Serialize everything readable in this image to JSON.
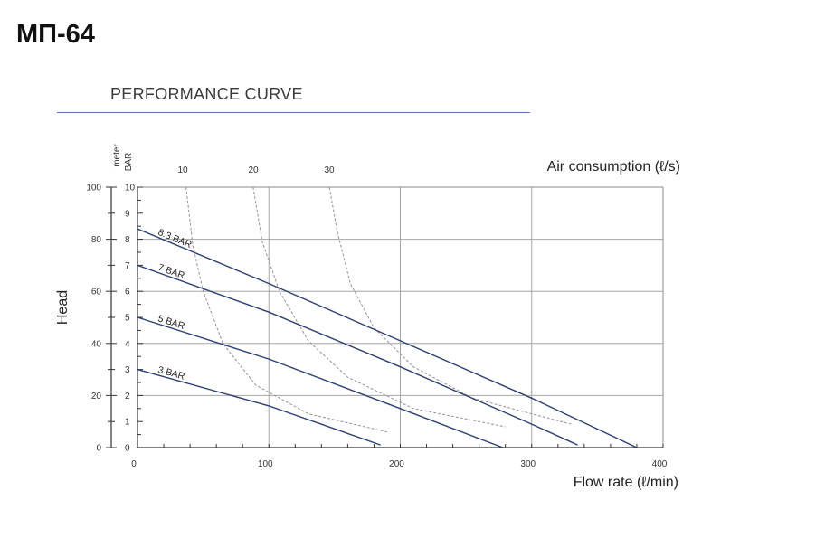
{
  "page": {
    "model_title": "МП-64",
    "curve_heading": "PERFORMANCE CURVE"
  },
  "chart_data": {
    "type": "line",
    "title": "PERFORMANCE CURVE",
    "xlabel": "Flow rate (ℓ/min)",
    "x_ticks": [
      0,
      100,
      200,
      300,
      400
    ],
    "xlim": [
      0,
      400
    ],
    "ylabel_left": "Head",
    "ylabel_left_unit": "meter",
    "y_ticks_left": [
      0,
      20,
      40,
      60,
      80,
      100
    ],
    "ylim_left": [
      0,
      100
    ],
    "ylabel_right_unit": "BAR",
    "y_ticks_bar": [
      0,
      1,
      2,
      3,
      4,
      5,
      6,
      7,
      8,
      9,
      10
    ],
    "ylim_bar": [
      0,
      10
    ],
    "top_axis_label": "Air consumption (ℓ/s)",
    "top_ticks": [
      "10",
      "20",
      "30"
    ],
    "grid": true,
    "colors": {
      "pressure_curve": "#2c3e72",
      "air_curve": "#9a8f95",
      "grid": "#a6a6a6"
    },
    "series": [
      {
        "name": "8.3 BAR",
        "kind": "pressure",
        "x": [
          0,
          100,
          200,
          300,
          380
        ],
        "y": [
          8.4,
          6.3,
          4.1,
          1.9,
          0
        ]
      },
      {
        "name": "7 BAR",
        "kind": "pressure",
        "x": [
          0,
          100,
          200,
          300,
          335
        ],
        "y": [
          7.0,
          5.2,
          3.1,
          0.9,
          0.1
        ]
      },
      {
        "name": "5 BAR",
        "kind": "pressure",
        "x": [
          0,
          100,
          200,
          278
        ],
        "y": [
          5.0,
          3.4,
          1.5,
          0
        ]
      },
      {
        "name": "3 BAR",
        "kind": "pressure",
        "x": [
          0,
          100,
          185
        ],
        "y": [
          3.0,
          1.6,
          0.1
        ]
      },
      {
        "name": "10",
        "kind": "air",
        "x": [
          37,
          42,
          50,
          65,
          90,
          130,
          190
        ],
        "y": [
          10,
          7.8,
          6.0,
          4.0,
          2.4,
          1.3,
          0.6
        ]
      },
      {
        "name": "20",
        "kind": "air",
        "x": [
          88,
          95,
          108,
          130,
          160,
          210,
          280
        ],
        "y": [
          10,
          7.9,
          6.0,
          4.1,
          2.7,
          1.5,
          0.8
        ]
      },
      {
        "name": "30",
        "kind": "air",
        "x": [
          146,
          152,
          162,
          180,
          210,
          255,
          330
        ],
        "y": [
          10,
          8.3,
          6.3,
          4.6,
          3.1,
          1.9,
          0.9
        ]
      }
    ]
  }
}
